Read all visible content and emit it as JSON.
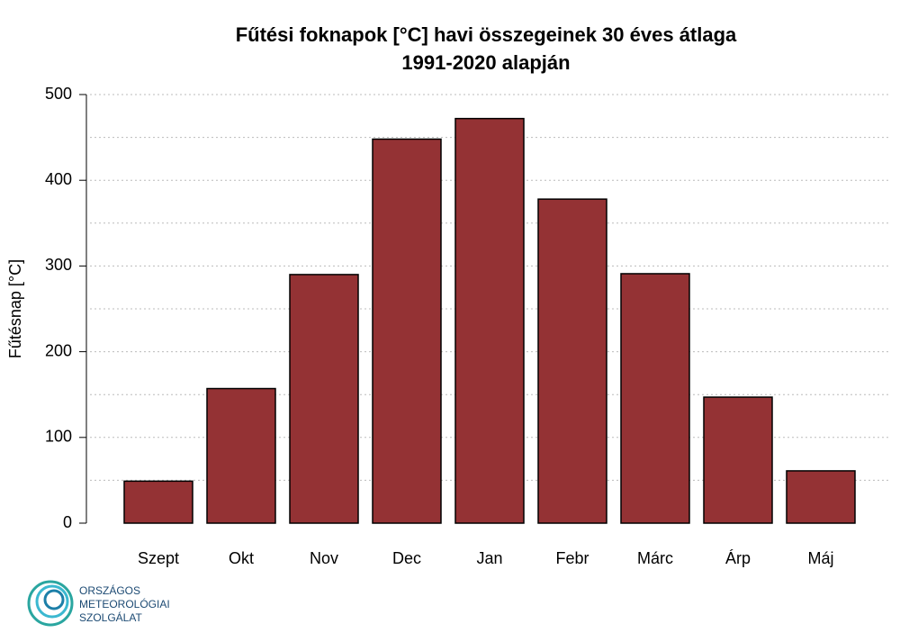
{
  "chart_data": {
    "type": "bar",
    "title": [
      "Fűtési foknapok [°C] havi összegeinek 30 éves átlaga",
      "1991-2020 alapján"
    ],
    "y_label": "Fűtésnap [°C]",
    "categories": [
      "Szept",
      "Okt",
      "Nov",
      "Dec",
      "Jan",
      "Febr",
      "Márc",
      "Árp",
      "Máj"
    ],
    "values": [
      49,
      157,
      290,
      448,
      472,
      378,
      291,
      147,
      61
    ],
    "color": "#943234",
    "ylim": [
      0,
      500
    ],
    "yticks": [
      0,
      100,
      200,
      300,
      400,
      500
    ],
    "grid_lines": [
      50,
      100,
      150,
      200,
      250,
      300,
      350,
      400,
      450,
      500
    ],
    "grid": true
  },
  "logo": {
    "lines": [
      "ORSZÁGOS",
      "METEOROLÓGIAI",
      "SZOLGÁLAT"
    ]
  }
}
